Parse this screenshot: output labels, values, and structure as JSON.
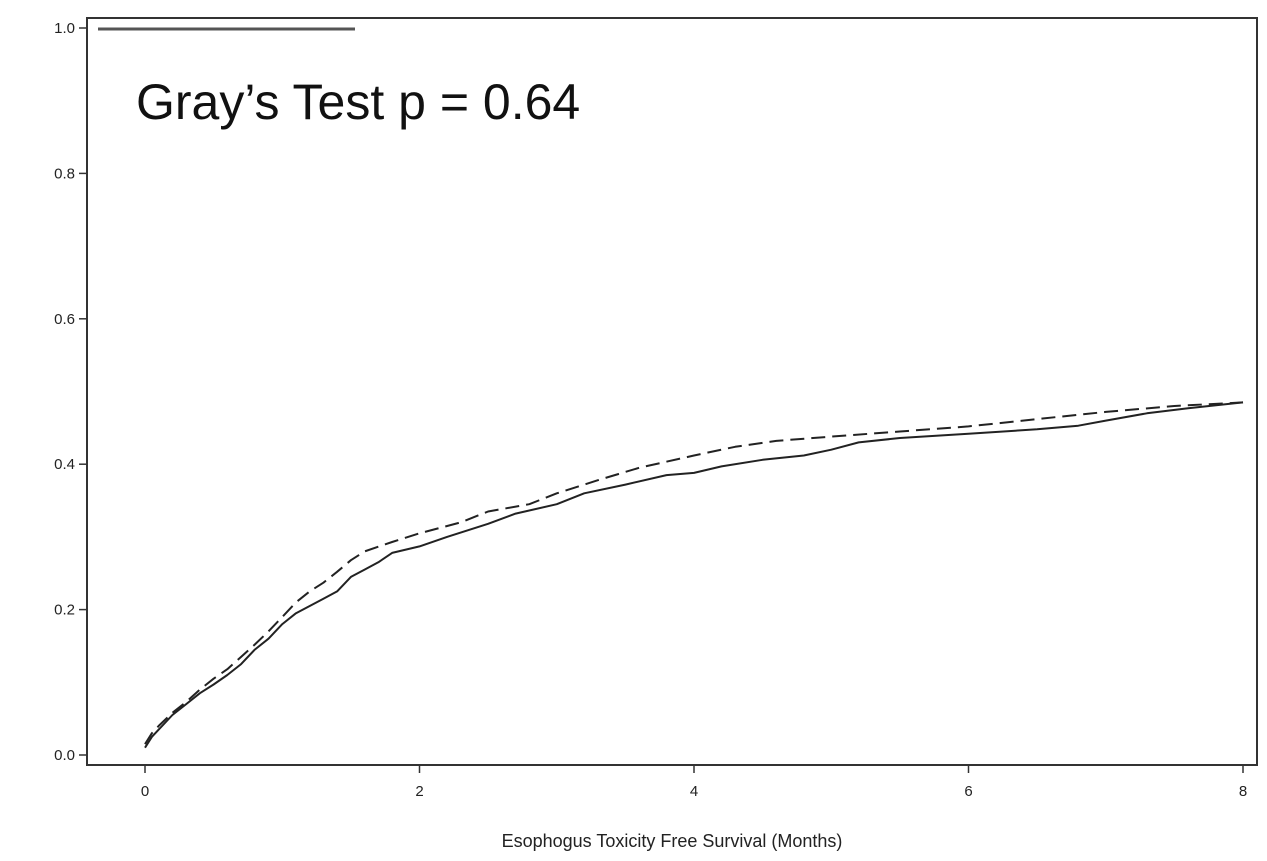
{
  "chart_data": {
    "type": "line",
    "title": "",
    "annotation": "Gray’s Test p = 0.64",
    "xlabel": "Esophogus Toxicity Free Survival (Months)",
    "ylabel": "",
    "xlim": [
      0,
      8
    ],
    "ylim": [
      0,
      1.0
    ],
    "x_ticks": [
      0,
      2,
      4,
      6,
      8
    ],
    "x_tick_labels": [
      "0",
      "2",
      "4",
      "6",
      "8"
    ],
    "y_ticks": [
      0,
      0.2,
      0.4,
      0.6,
      0.8,
      1.0
    ],
    "y_tick_labels": [
      "0.0",
      "0.2",
      "0.4",
      "0.6",
      "0.8",
      "1.0"
    ],
    "grid": false,
    "series": [
      {
        "style": "solid",
        "color": "#222222",
        "points": [
          [
            0,
            0.01
          ],
          [
            0.05,
            0.025
          ],
          [
            0.1,
            0.035
          ],
          [
            0.2,
            0.055
          ],
          [
            0.3,
            0.07
          ],
          [
            0.4,
            0.085
          ],
          [
            0.5,
            0.097
          ],
          [
            0.6,
            0.11
          ],
          [
            0.7,
            0.125
          ],
          [
            0.8,
            0.145
          ],
          [
            0.9,
            0.16
          ],
          [
            1.0,
            0.18
          ],
          [
            1.1,
            0.195
          ],
          [
            1.2,
            0.205
          ],
          [
            1.3,
            0.215
          ],
          [
            1.4,
            0.225
          ],
          [
            1.5,
            0.245
          ],
          [
            1.6,
            0.255
          ],
          [
            1.7,
            0.265
          ],
          [
            1.8,
            0.278
          ],
          [
            2.0,
            0.287
          ],
          [
            2.2,
            0.3
          ],
          [
            2.5,
            0.318
          ],
          [
            2.7,
            0.332
          ],
          [
            3.0,
            0.345
          ],
          [
            3.2,
            0.36
          ],
          [
            3.5,
            0.372
          ],
          [
            3.8,
            0.385
          ],
          [
            4.0,
            0.388
          ],
          [
            4.2,
            0.397
          ],
          [
            4.5,
            0.406
          ],
          [
            4.8,
            0.412
          ],
          [
            5.0,
            0.42
          ],
          [
            5.2,
            0.43
          ],
          [
            5.5,
            0.436
          ],
          [
            6.0,
            0.442
          ],
          [
            6.5,
            0.448
          ],
          [
            6.8,
            0.453
          ],
          [
            7.0,
            0.46
          ],
          [
            7.3,
            0.47
          ],
          [
            7.6,
            0.477
          ],
          [
            8.0,
            0.485
          ]
        ]
      },
      {
        "style": "dashed",
        "color": "#222222",
        "points": [
          [
            0,
            0.015
          ],
          [
            0.05,
            0.03
          ],
          [
            0.1,
            0.04
          ],
          [
            0.2,
            0.058
          ],
          [
            0.3,
            0.073
          ],
          [
            0.4,
            0.09
          ],
          [
            0.5,
            0.105
          ],
          [
            0.6,
            0.118
          ],
          [
            0.7,
            0.135
          ],
          [
            0.8,
            0.152
          ],
          [
            0.9,
            0.17
          ],
          [
            1.0,
            0.19
          ],
          [
            1.1,
            0.21
          ],
          [
            1.2,
            0.225
          ],
          [
            1.3,
            0.237
          ],
          [
            1.4,
            0.252
          ],
          [
            1.5,
            0.268
          ],
          [
            1.6,
            0.28
          ],
          [
            1.8,
            0.293
          ],
          [
            2.0,
            0.305
          ],
          [
            2.3,
            0.32
          ],
          [
            2.5,
            0.335
          ],
          [
            2.8,
            0.345
          ],
          [
            3.0,
            0.36
          ],
          [
            3.3,
            0.378
          ],
          [
            3.6,
            0.395
          ],
          [
            4.0,
            0.412
          ],
          [
            4.3,
            0.424
          ],
          [
            4.6,
            0.432
          ],
          [
            5.0,
            0.438
          ],
          [
            5.5,
            0.445
          ],
          [
            6.0,
            0.452
          ],
          [
            6.5,
            0.462
          ],
          [
            7.0,
            0.472
          ],
          [
            7.5,
            0.48
          ],
          [
            8.0,
            0.485
          ]
        ]
      }
    ]
  }
}
